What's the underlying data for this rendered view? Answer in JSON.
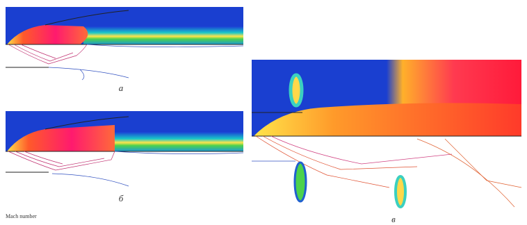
{
  "panels": [
    {
      "label": "а"
    },
    {
      "label": "б"
    },
    {
      "label": "в"
    }
  ],
  "legend": {
    "title": "Mach number"
  }
}
